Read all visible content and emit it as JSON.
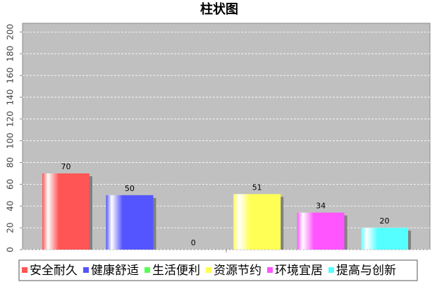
{
  "chart_data": {
    "type": "bar",
    "title": "柱状图",
    "categories": [
      null
    ],
    "series": [
      {
        "name": "安全耐久",
        "color": "#ff5555",
        "values": [
          70
        ]
      },
      {
        "name": "健康舒适",
        "color": "#5555ff",
        "values": [
          50
        ]
      },
      {
        "name": "生活便利",
        "color": "#55ff55",
        "values": [
          0
        ]
      },
      {
        "name": "资源节约",
        "color": "#ffff55",
        "values": [
          51
        ]
      },
      {
        "name": "环境宜居",
        "color": "#ff55ff",
        "values": [
          34
        ]
      },
      {
        "name": "提高与创新",
        "color": "#55ffff",
        "values": [
          20
        ]
      }
    ],
    "ylim": [
      0,
      208
    ],
    "yticks": [
      0,
      20,
      40,
      60,
      80,
      100,
      120,
      140,
      160,
      180,
      200
    ],
    "grid": true
  }
}
